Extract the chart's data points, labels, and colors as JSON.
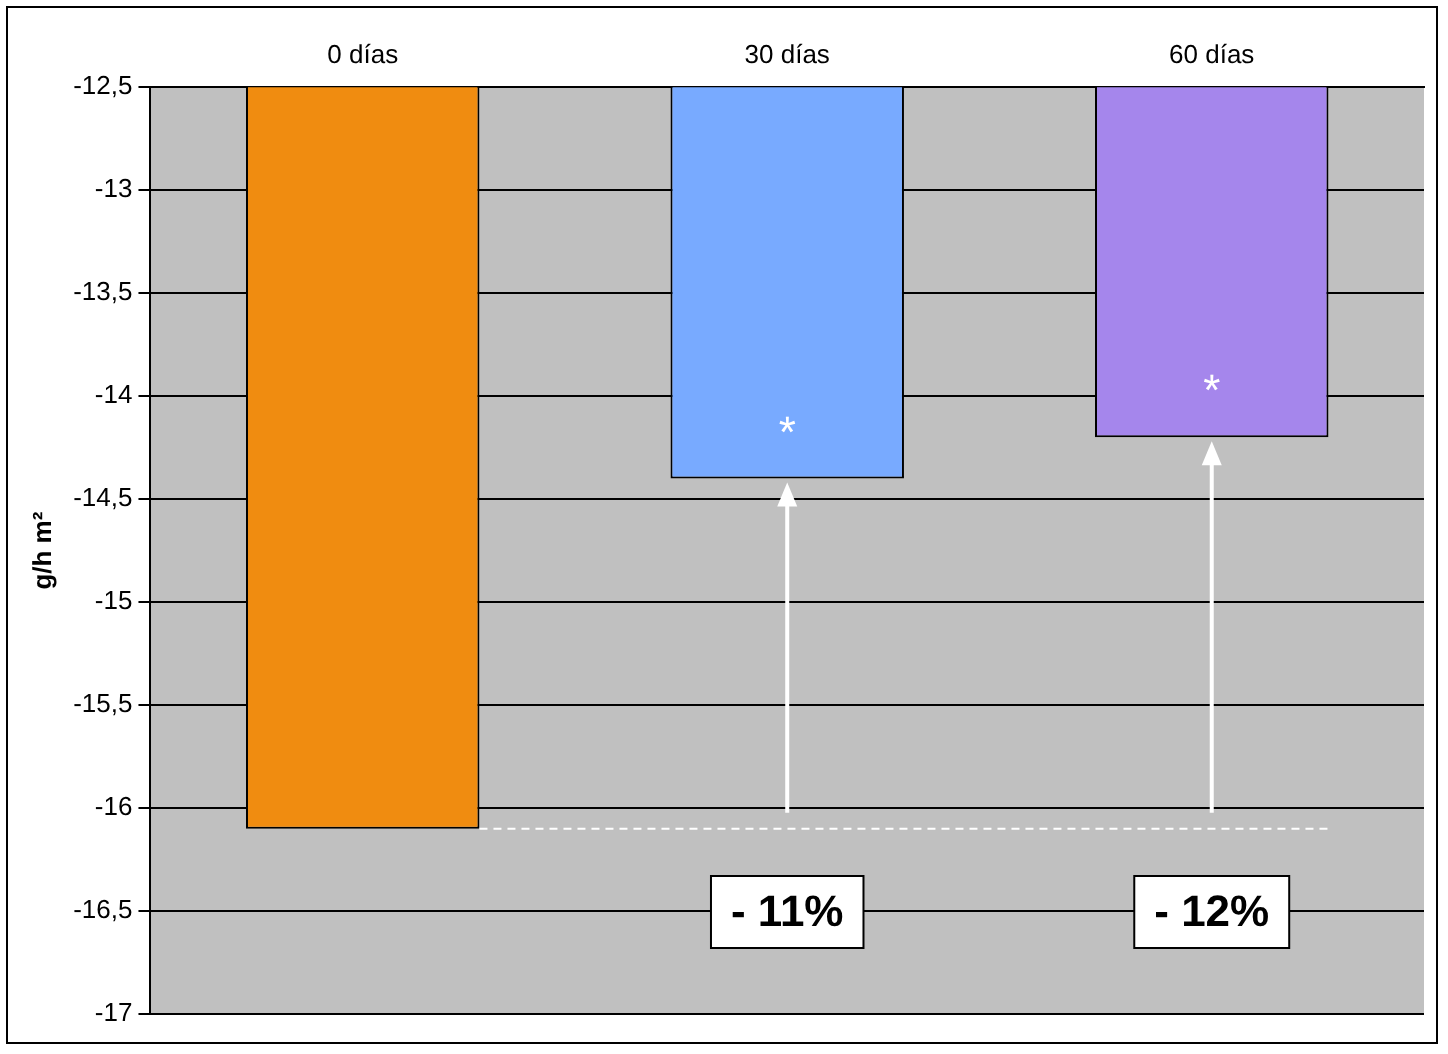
{
  "chart_data": {
    "type": "bar",
    "categories": [
      "0 días",
      "30 días",
      "60 días"
    ],
    "values": [
      -16.1,
      -14.4,
      -14.2
    ],
    "colors": [
      "#f08c10",
      "#78aaff",
      "#a586ec"
    ],
    "ylabel": "g/h m²",
    "ylim": [
      -17,
      -12.5
    ],
    "yticks": [
      {
        "value": -17,
        "label": "-17"
      },
      {
        "value": -16.5,
        "label": "-16,5"
      },
      {
        "value": -16,
        "label": "-16"
      },
      {
        "value": -15.5,
        "label": "-15,5"
      },
      {
        "value": -15,
        "label": "-15"
      },
      {
        "value": -14.5,
        "label": "-14,5"
      },
      {
        "value": -14,
        "label": "-14"
      },
      {
        "value": -13.5,
        "label": "-13,5"
      },
      {
        "value": -13,
        "label": "-13"
      },
      {
        "value": -12.5,
        "label": "-12,5"
      }
    ],
    "grid": "y",
    "legend": false,
    "ref_lines": [
      {
        "axis": "y",
        "value": -16.1,
        "color": "#ffffff",
        "line_style": "dashed"
      }
    ],
    "annotations": [
      "*",
      "*",
      "- 11%",
      "- 12%"
    ]
  }
}
